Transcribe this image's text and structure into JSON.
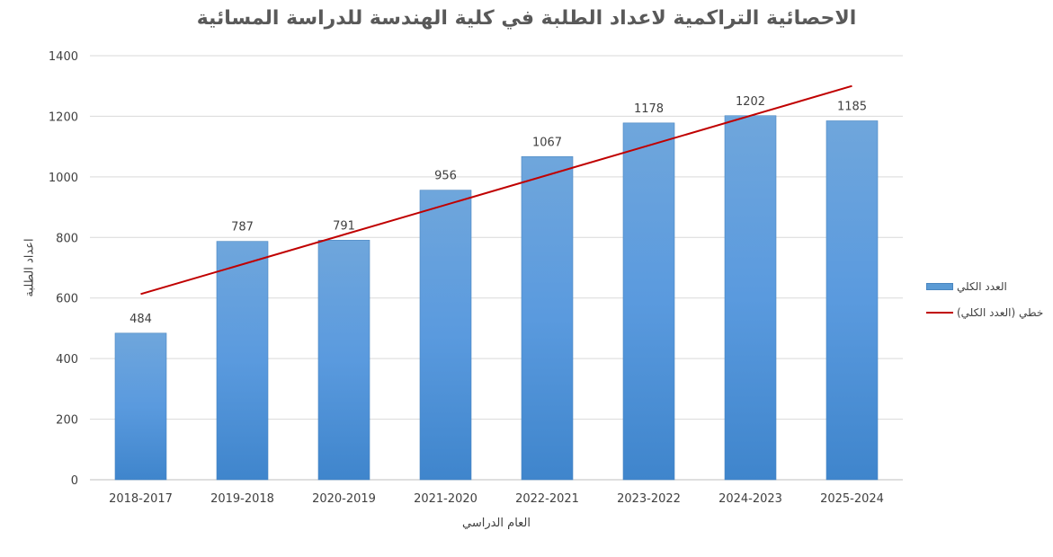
{
  "chart_data": {
    "type": "bar",
    "title": "الاحصائية التراكمية لاعداد الطلبة في كلية الهندسة للدراسة المسائية",
    "xlabel": "العام الدراسي",
    "ylabel": "اعداد الطلبة",
    "categories": [
      "2018-2017",
      "2019-2018",
      "2020-2019",
      "2021-2020",
      "2022-2021",
      "2023-2022",
      "2024-2023",
      "2025-2024"
    ],
    "series": [
      {
        "name": "العدد الكلي",
        "values": [
          484,
          787,
          791,
          956,
          1067,
          1178,
          1202,
          1185
        ],
        "color": "#5b9bd5"
      }
    ],
    "trendline": {
      "name": "خطي (العدد الكلي)",
      "start": 613,
      "end": 1300,
      "color": "#c00000"
    },
    "ylim": [
      0,
      1400
    ],
    "yticks": [
      0,
      200,
      400,
      600,
      800,
      1000,
      1200,
      1400
    ],
    "grid": true,
    "legend_position": "right"
  }
}
